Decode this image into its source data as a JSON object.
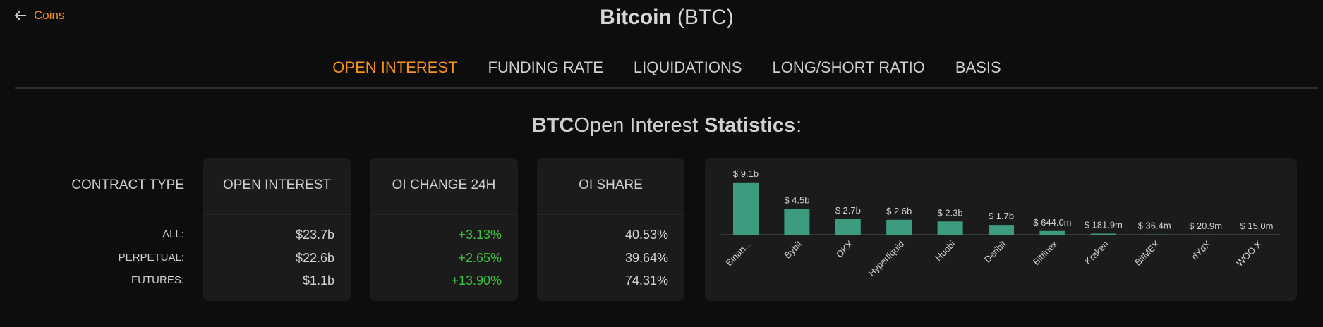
{
  "header": {
    "back_label": "Coins",
    "title": "Bitcoin",
    "title_symbol": "(BTC)"
  },
  "tabs": [
    "OPEN INTEREST",
    "FUNDING RATE",
    "LIQUIDATIONS",
    "LONG/SHORT RATIO",
    "BASIS"
  ],
  "section_title": {
    "coin": "BTC",
    "metric": "Open Interest",
    "emphasis": "Statistics",
    "suffix": ":"
  },
  "table": {
    "headers": [
      "CONTRACT TYPE",
      "OPEN INTEREST",
      "OI CHANGE 24H",
      "OI SHARE"
    ],
    "rows": [
      [
        "ALL:",
        "$23.7b",
        "+3.13%",
        "40.53%"
      ],
      [
        "PERPETUAL:",
        "$22.6b",
        "+2.65%",
        "39.64%"
      ],
      [
        "FUTURES:",
        "$1.1b",
        "+13.90%",
        "74.31%"
      ]
    ]
  },
  "chart_data": {
    "type": "bar",
    "color": "#3d9c80",
    "categories": [
      "Binan...",
      "Bybit",
      "OKX",
      "Hyperliquid",
      "Huobi",
      "Deribit",
      "Bitfinex",
      "Kraken",
      "BitMEX",
      "dYdX",
      "WOO X"
    ],
    "values": [
      9.1,
      4.5,
      2.7,
      2.6,
      2.3,
      1.7,
      0.644,
      0.1819,
      0.0364,
      0.0209,
      0.015
    ],
    "value_labels": [
      "$ 9.1b",
      "$ 4.5b",
      "$ 2.7b",
      "$ 2.6b",
      "$ 2.3b",
      "$ 1.7b",
      "$ 644.0m",
      "$ 181.9m",
      "$ 36.4m",
      "$ 20.9m",
      "$ 15.0m"
    ]
  }
}
